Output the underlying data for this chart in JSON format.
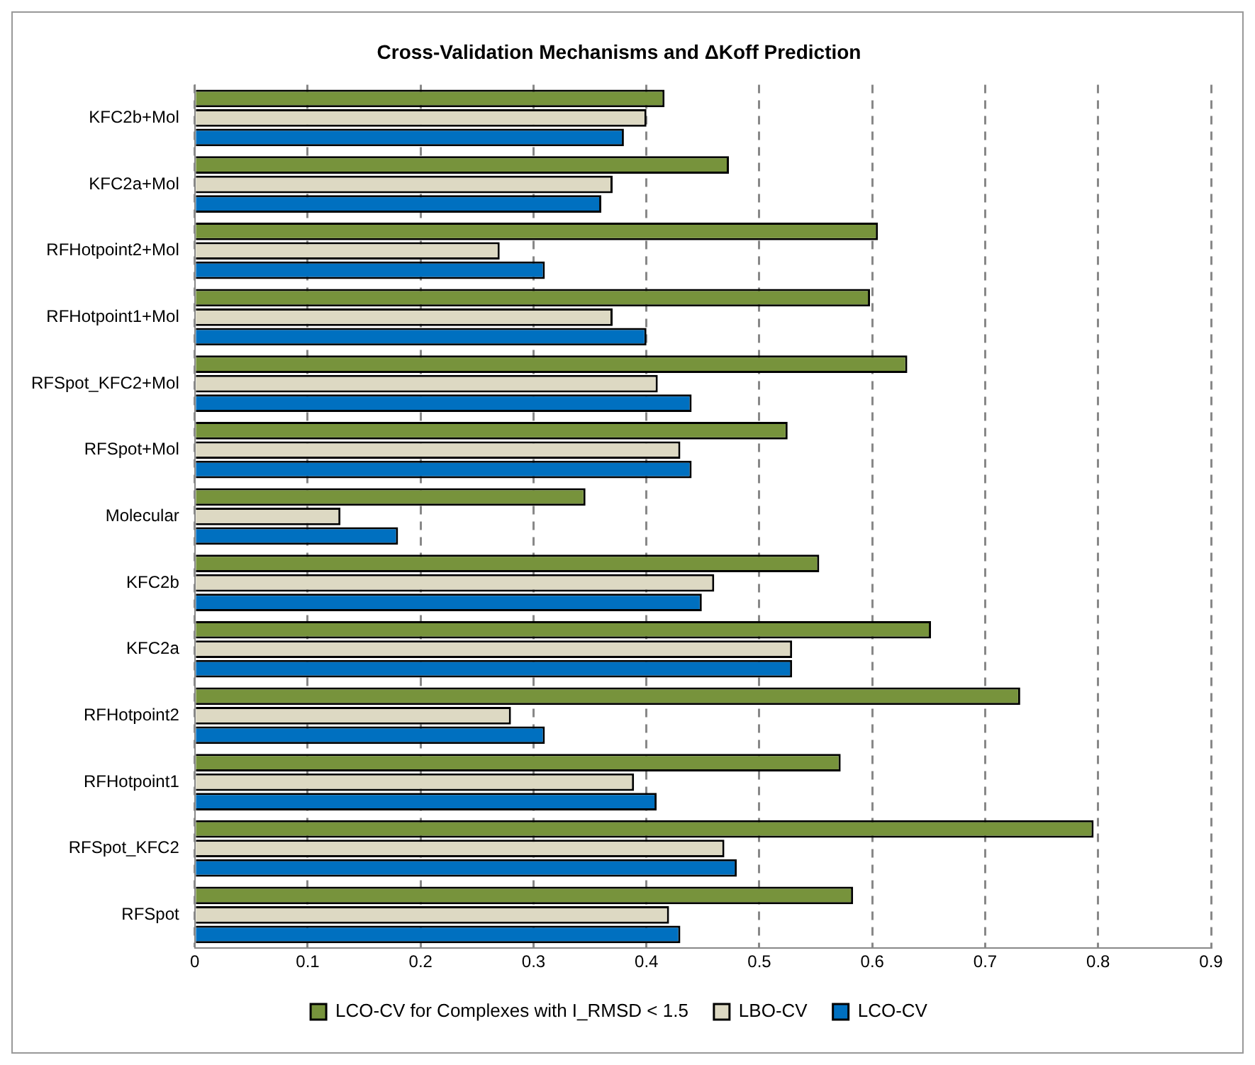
{
  "chart_data": {
    "type": "bar",
    "orientation": "horizontal",
    "title": "Cross-Validation Mechanisms and ΔKoff Prediction",
    "categories": [
      "KFC2b+Mol",
      "KFC2a+Mol",
      "RFHotpoint2+Mol",
      "RFHotpoint1+Mol",
      "RFSpot_KFC2+Mol",
      "RFSpot+Mol",
      "Molecular",
      "KFC2b",
      "KFC2a",
      "RFHotpoint2",
      "RFHotpoint1",
      "RFSpot_KFC2",
      "RFSpot"
    ],
    "series": [
      {
        "name": "LCO-CV for Complexes with I_RMSD < 1.5",
        "color": "#77933c",
        "values": [
          0.416,
          0.473,
          0.605,
          0.598,
          0.631,
          0.525,
          0.346,
          0.553,
          0.652,
          0.731,
          0.572,
          0.796,
          0.583
        ]
      },
      {
        "name": "LBO-CV",
        "color": "#ddd9c3",
        "values": [
          0.4,
          0.37,
          0.27,
          0.37,
          0.41,
          0.43,
          0.129,
          0.46,
          0.529,
          0.28,
          0.389,
          0.469,
          0.42
        ]
      },
      {
        "name": "LCO-CV",
        "color": "#0070c0",
        "values": [
          0.38,
          0.36,
          0.31,
          0.4,
          0.44,
          0.44,
          0.18,
          0.449,
          0.529,
          0.31,
          0.409,
          0.48,
          0.43
        ]
      }
    ],
    "xlim": [
      0,
      0.9
    ],
    "xticks": [
      0,
      0.1,
      0.2,
      0.3,
      0.4,
      0.5,
      0.6,
      0.7,
      0.8,
      0.9
    ],
    "grid": "x",
    "legend": "bottom"
  }
}
